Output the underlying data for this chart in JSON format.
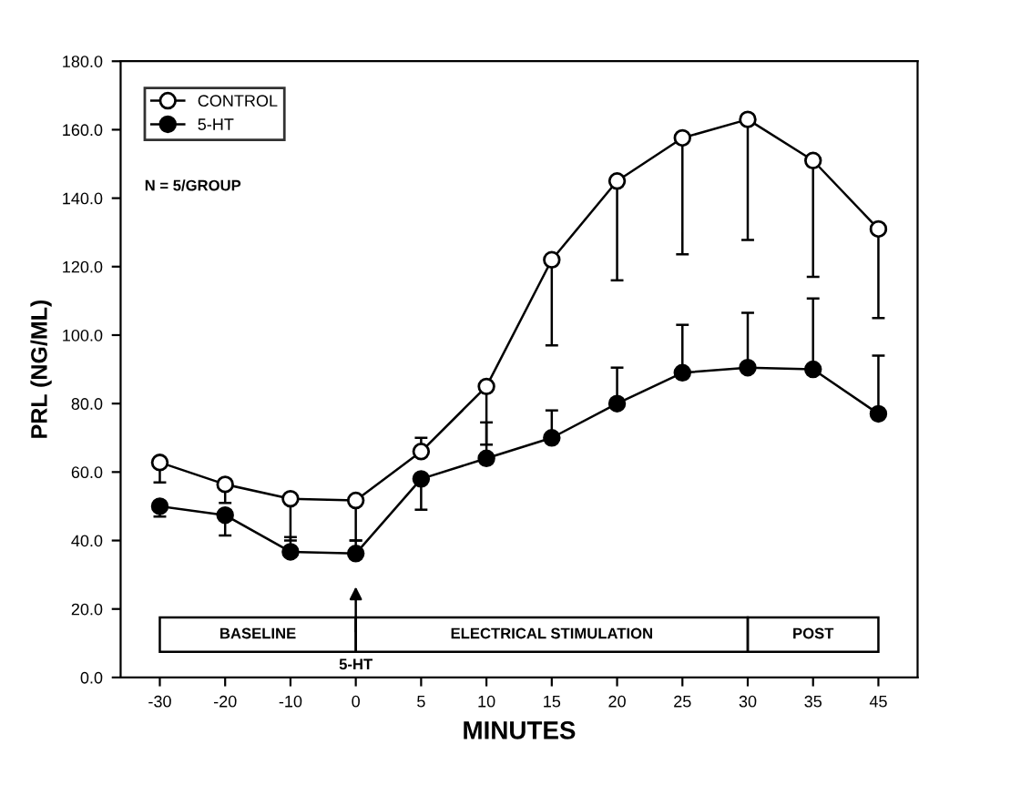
{
  "chart_data": {
    "type": "line",
    "xlabel": "MINUTES",
    "ylabel": "PRL (NG/ML)",
    "categories": [
      "-30",
      "-20",
      "-10",
      "0",
      "5",
      "10",
      "15",
      "20",
      "25",
      "30",
      "35",
      "45"
    ],
    "series": [
      {
        "name": "CONTROL",
        "color": "#ffffff",
        "values": [
          62.8,
          56.4,
          52.2,
          51.7,
          66,
          85,
          122,
          145,
          157.6,
          163,
          151,
          131
        ],
        "errors": [
          [
            57,
            62.8
          ],
          [
            51,
            56.4
          ],
          [
            40,
            52.2
          ],
          [
            40,
            51.7
          ],
          [
            66,
            70
          ],
          [
            68,
            85
          ],
          [
            97,
            122
          ],
          [
            116,
            145
          ],
          [
            123.6,
            157.6
          ],
          [
            127.8,
            163
          ],
          [
            117,
            151
          ],
          [
            105,
            131
          ]
        ]
      },
      {
        "name": "5-HT",
        "color": "#000000",
        "values": [
          50,
          47.4,
          36.7,
          36.2,
          58,
          64,
          70,
          80,
          89,
          90.5,
          90,
          77
        ],
        "errors": [
          [
            47,
            50
          ],
          [
            41.5,
            47.4
          ],
          [
            36.7,
            41
          ],
          [
            36.2,
            40
          ],
          [
            49,
            58
          ],
          [
            64,
            74.5
          ],
          [
            70,
            78
          ],
          [
            80,
            90.5
          ],
          [
            89,
            103
          ],
          [
            90.5,
            106.5
          ],
          [
            90,
            110.7
          ],
          [
            77,
            94
          ]
        ]
      }
    ],
    "marker": "circle",
    "line_style": "solid",
    "legend": "top left",
    "grid": false,
    "ylim": [
      0,
      180
    ],
    "yticks": [
      {
        "value": 0,
        "label": "0.0"
      },
      {
        "value": 20,
        "label": "20.0"
      },
      {
        "value": 40,
        "label": "40.0"
      },
      {
        "value": 60,
        "label": "60.0"
      },
      {
        "value": 80,
        "label": "80.0"
      },
      {
        "value": 100,
        "label": "100.0"
      },
      {
        "value": 120,
        "label": "120.0"
      },
      {
        "value": 140,
        "label": "140.0"
      },
      {
        "value": 160,
        "label": "160.0"
      },
      {
        "value": 180,
        "label": "180.0"
      }
    ],
    "annotations": [
      "N = 5/GROUP",
      "BASELINE",
      "ELECTRICAL STIMULATION",
      "POST",
      "5-HT"
    ]
  }
}
